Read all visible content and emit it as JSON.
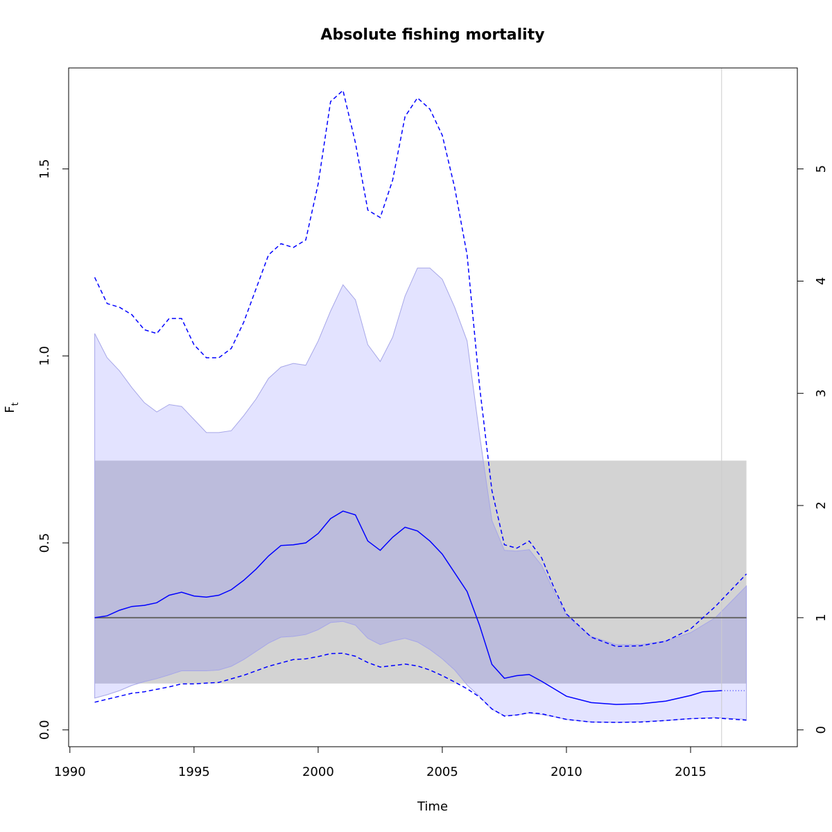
{
  "chart_data": {
    "type": "line",
    "title": "Absolute fishing mortality",
    "xlabel": "Time",
    "ylabel": "F",
    "ylabel_subscript": "t",
    "xlim": [
      1989.95,
      2019.3
    ],
    "ylim": [
      -0.045,
      1.77
    ],
    "right_ylim": [
      -0.15,
      5.9
    ],
    "x_ticks": [
      1990,
      1995,
      2000,
      2005,
      2010,
      2015
    ],
    "x_tick_labels": [
      "1990",
      "1995",
      "2000",
      "2005",
      "2010",
      "2015"
    ],
    "y_ticks": [
      0.0,
      0.5,
      1.0,
      1.5
    ],
    "y_tick_labels": [
      "0.0",
      "0.5",
      "1.0",
      "1.5"
    ],
    "right_y_ticks": [
      0,
      1,
      2,
      3,
      4,
      5
    ],
    "right_y_tick_labels": [
      "0",
      "1",
      "2",
      "3",
      "4",
      "5"
    ],
    "vline_x": 2016.25,
    "reference_line_y": 0.3,
    "reference_band": [
      0.124,
      0.72
    ],
    "reference_band_x": [
      1991.0,
      2017.25
    ],
    "colors": {
      "series": "#0000ff",
      "ci_fill": "#e3e3ff",
      "ci_edge": "#a6a6e8",
      "band_fill": "#d3d3d3",
      "overlap_fill": "#bcbcdc",
      "reference_line": "#666666",
      "vline": "#cccccc"
    },
    "series": [
      {
        "role": "estimate",
        "style": "solid",
        "x": [
          1991.0,
          1991.5,
          1992.0,
          1992.5,
          1993.0,
          1993.5,
          1994.0,
          1994.5,
          1995.0,
          1995.5,
          1996.0,
          1996.5,
          1997.0,
          1997.5,
          1998.0,
          1998.5,
          1999.0,
          1999.5,
          2000.0,
          2000.5,
          2001.0,
          2001.5,
          2002.0,
          2002.5,
          2003.0,
          2003.5,
          2004.0,
          2004.5,
          2005.0,
          2005.5,
          2006.0,
          2006.5,
          2007.0,
          2007.5,
          2008.0,
          2008.5,
          2009.0,
          2009.5,
          2010.0,
          2011.0,
          2012.0,
          2013.0,
          2014.0,
          2015.0,
          2015.5,
          2016.25
        ],
        "values": [
          0.3,
          0.305,
          0.32,
          0.33,
          0.333,
          0.34,
          0.36,
          0.368,
          0.358,
          0.355,
          0.36,
          0.375,
          0.4,
          0.43,
          0.465,
          0.493,
          0.495,
          0.5,
          0.525,
          0.565,
          0.585,
          0.575,
          0.505,
          0.48,
          0.515,
          0.542,
          0.532,
          0.505,
          0.47,
          0.42,
          0.37,
          0.28,
          0.175,
          0.138,
          0.145,
          0.148,
          0.13,
          0.11,
          0.09,
          0.073,
          0.068,
          0.07,
          0.077,
          0.092,
          0.102,
          0.105
        ]
      },
      {
        "role": "estimate-projection",
        "style": "dotted",
        "x": [
          2016.25,
          2017.25
        ],
        "values": [
          0.105,
          0.105
        ]
      },
      {
        "role": "upper-ci",
        "style": "dashed",
        "x": [
          1991.0,
          1991.5,
          1992.0,
          1992.5,
          1993.0,
          1993.5,
          1994.0,
          1994.5,
          1995.0,
          1995.5,
          1996.0,
          1996.5,
          1997.0,
          1997.5,
          1998.0,
          1998.5,
          1999.0,
          1999.5,
          2000.0,
          2000.5,
          2001.0,
          2001.5,
          2002.0,
          2002.5,
          2003.0,
          2003.5,
          2004.0,
          2004.5,
          2005.0,
          2005.5,
          2006.0,
          2006.5,
          2007.0,
          2007.5,
          2008.0,
          2008.5,
          2009.0,
          2009.5,
          2010.0,
          2011.0,
          2012.0,
          2013.0,
          2014.0,
          2015.0,
          2016.0,
          2017.25
        ],
        "values": [
          1.21,
          1.14,
          1.13,
          1.11,
          1.07,
          1.06,
          1.1,
          1.1,
          1.03,
          0.995,
          0.995,
          1.02,
          1.09,
          1.18,
          1.27,
          1.3,
          1.29,
          1.31,
          1.46,
          1.68,
          1.71,
          1.57,
          1.39,
          1.37,
          1.47,
          1.64,
          1.69,
          1.66,
          1.59,
          1.45,
          1.27,
          0.92,
          0.64,
          0.495,
          0.486,
          0.505,
          0.46,
          0.38,
          0.31,
          0.248,
          0.223,
          0.225,
          0.237,
          0.27,
          0.33,
          0.417
        ]
      },
      {
        "role": "lower-ci",
        "style": "dashed",
        "x": [
          1991.0,
          1992.0,
          1992.5,
          1993.0,
          1994.0,
          1994.5,
          1995.0,
          1996.0,
          1997.0,
          1998.0,
          1999.0,
          1999.5,
          2000.0,
          2000.5,
          2001.0,
          2001.5,
          2002.0,
          2002.5,
          2003.0,
          2003.5,
          2004.0,
          2004.5,
          2005.0,
          2005.5,
          2006.0,
          2006.5,
          2007.0,
          2007.5,
          2008.0,
          2008.5,
          2009.0,
          2010.0,
          2011.0,
          2012.0,
          2013.0,
          2014.0,
          2015.0,
          2016.0,
          2017.25
        ],
        "values": [
          0.074,
          0.09,
          0.098,
          0.102,
          0.115,
          0.123,
          0.123,
          0.127,
          0.146,
          0.17,
          0.188,
          0.19,
          0.196,
          0.204,
          0.205,
          0.197,
          0.18,
          0.168,
          0.172,
          0.176,
          0.171,
          0.16,
          0.145,
          0.128,
          0.11,
          0.088,
          0.056,
          0.037,
          0.04,
          0.046,
          0.043,
          0.028,
          0.021,
          0.02,
          0.021,
          0.025,
          0.03,
          0.032,
          0.026
        ]
      }
    ],
    "ci_band": {
      "x": [
        1991.0,
        1991.5,
        1992.0,
        1992.5,
        1993.0,
        1993.5,
        1994.0,
        1994.5,
        1995.0,
        1995.5,
        1996.0,
        1996.5,
        1997.0,
        1997.5,
        1998.0,
        1998.5,
        1999.0,
        1999.5,
        2000.0,
        2000.5,
        2001.0,
        2001.5,
        2002.0,
        2002.5,
        2003.0,
        2003.5,
        2004.0,
        2004.5,
        2005.0,
        2005.5,
        2006.0,
        2006.5,
        2007.0,
        2007.5,
        2008.0,
        2008.5,
        2009.0,
        2009.5,
        2010.0,
        2011.0,
        2012.0,
        2013.0,
        2014.0,
        2015.0,
        2016.0,
        2017.25
      ],
      "upper": [
        1.06,
        0.995,
        0.96,
        0.915,
        0.875,
        0.85,
        0.87,
        0.865,
        0.83,
        0.795,
        0.795,
        0.8,
        0.84,
        0.885,
        0.94,
        0.97,
        0.98,
        0.975,
        1.04,
        1.12,
        1.19,
        1.15,
        1.03,
        0.985,
        1.05,
        1.16,
        1.235,
        1.235,
        1.205,
        1.13,
        1.04,
        0.79,
        0.56,
        0.48,
        0.478,
        0.482,
        0.44,
        0.37,
        0.305,
        0.25,
        0.228,
        0.228,
        0.238,
        0.26,
        0.3,
        0.385
      ],
      "lower": [
        0.085,
        0.094,
        0.105,
        0.119,
        0.129,
        0.137,
        0.147,
        0.158,
        0.158,
        0.158,
        0.16,
        0.17,
        0.188,
        0.21,
        0.232,
        0.248,
        0.25,
        0.255,
        0.268,
        0.287,
        0.29,
        0.28,
        0.245,
        0.228,
        0.238,
        0.245,
        0.235,
        0.215,
        0.19,
        0.16,
        0.12,
        0.09,
        0.055,
        0.038,
        0.04,
        0.045,
        0.041,
        0.035,
        0.028,
        0.021,
        0.02,
        0.022,
        0.025,
        0.03,
        0.033,
        0.028
      ]
    }
  }
}
